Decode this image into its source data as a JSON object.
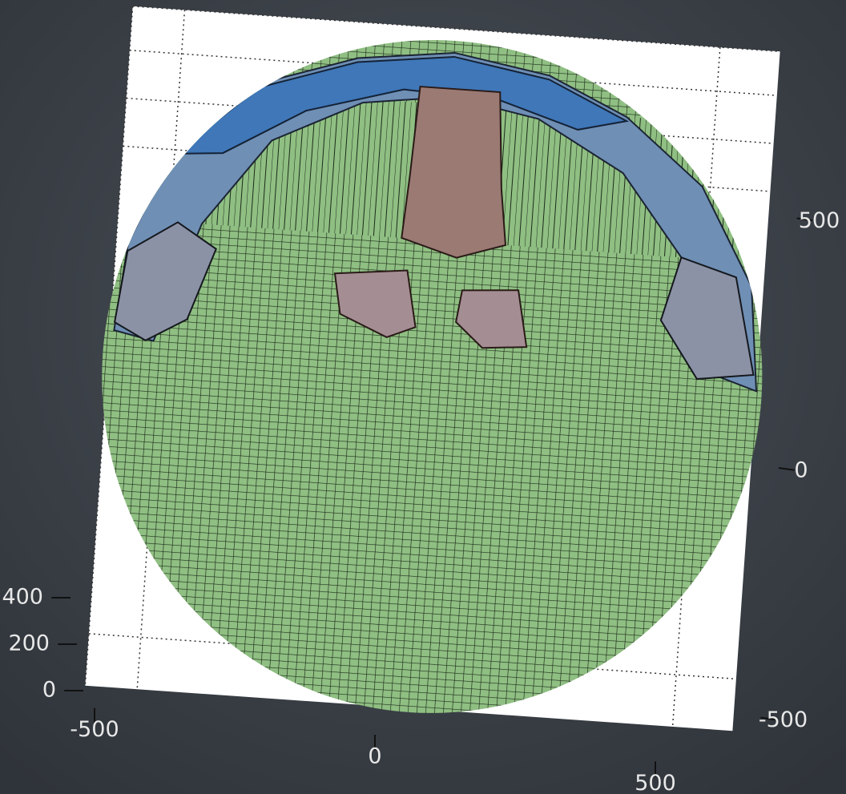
{
  "chart_data": {
    "type": "surface",
    "xlim": [
      -600,
      600
    ],
    "xticks": [
      -500,
      0,
      500
    ],
    "ylim": [
      -600,
      600
    ],
    "yticks": [
      -500,
      0,
      500
    ],
    "zlim": [
      0,
      500
    ],
    "zticks": [
      0,
      200,
      400
    ],
    "grid": true
  }
}
